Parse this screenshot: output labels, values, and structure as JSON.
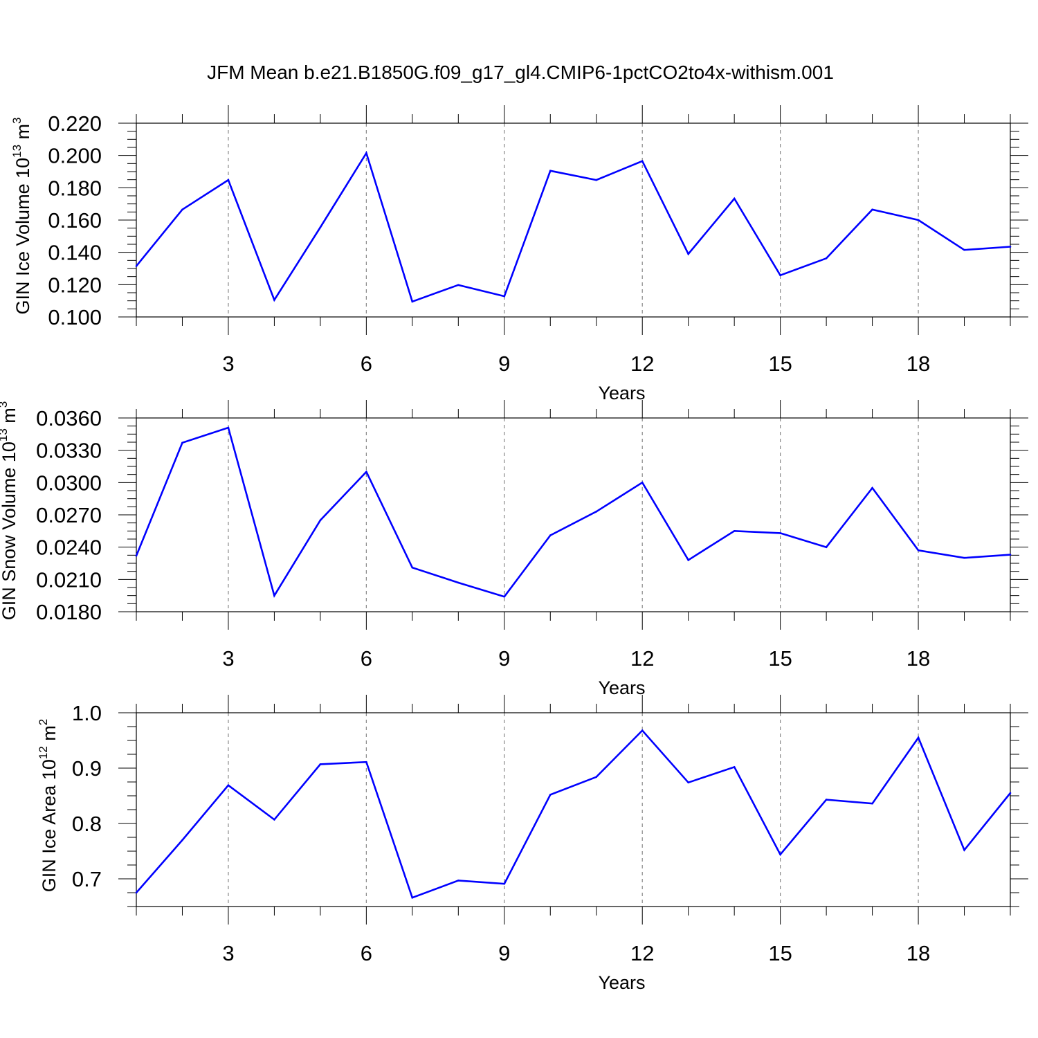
{
  "title": "JFM Mean b.e21.B1850G.f09_g17_gl4.CMIP6-1pctCO2to4x-withism.001",
  "colors": {
    "series": "#0000ff",
    "axis": "#000000",
    "grid": "#888888"
  },
  "chart_data": [
    {
      "type": "line",
      "ylabel": {
        "base": "GIN Ice Volume 10",
        "exp": "13",
        "unit": " m",
        "unit_exp": "3"
      },
      "xlabel": "Years",
      "xlim": [
        1,
        20
      ],
      "ylim": [
        0.1,
        0.22
      ],
      "x_ticks": [
        3,
        6,
        9,
        12,
        15,
        18
      ],
      "y_ticks": [
        "0.100",
        "0.120",
        "0.140",
        "0.160",
        "0.180",
        "0.200",
        "0.220"
      ],
      "grid": "vertical-dashed",
      "x": [
        1,
        2,
        3,
        4,
        5,
        6,
        7,
        8,
        9,
        10,
        11,
        12,
        13,
        14,
        15,
        16,
        17,
        18,
        19,
        20
      ],
      "values": [
        0.1315,
        0.1665,
        0.1848,
        0.1105,
        0.1555,
        0.2015,
        0.1095,
        0.1198,
        0.1128,
        0.1905,
        0.1848,
        0.1965,
        0.139,
        0.1733,
        0.1258,
        0.1363,
        0.1665,
        0.16,
        0.1415,
        0.1435
      ]
    },
    {
      "type": "line",
      "ylabel": {
        "base": "GIN Snow Volume 10",
        "exp": "13",
        "unit": " m",
        "unit_exp": "3"
      },
      "xlabel": "Years",
      "xlim": [
        1,
        20
      ],
      "ylim": [
        0.018,
        0.036
      ],
      "x_ticks": [
        3,
        6,
        9,
        12,
        15,
        18
      ],
      "y_ticks": [
        "0.0180",
        "0.0210",
        "0.0240",
        "0.0270",
        "0.0300",
        "0.0330",
        "0.0360"
      ],
      "grid": "vertical-dashed",
      "x": [
        1,
        2,
        3,
        4,
        5,
        6,
        7,
        8,
        9,
        10,
        11,
        12,
        13,
        14,
        15,
        16,
        17,
        18,
        19,
        20
      ],
      "values": [
        0.0232,
        0.0337,
        0.0351,
        0.0195,
        0.0265,
        0.031,
        0.0221,
        0.0207,
        0.0194,
        0.0251,
        0.0273,
        0.03,
        0.0228,
        0.0255,
        0.0253,
        0.024,
        0.0295,
        0.0237,
        0.023,
        0.0233
      ]
    },
    {
      "type": "line",
      "ylabel": {
        "base": "GIN Ice Area 10",
        "exp": "12",
        "unit": " m",
        "unit_exp": "2"
      },
      "xlabel": "Years",
      "xlim": [
        1,
        20
      ],
      "ylim": [
        0.65,
        1.0
      ],
      "x_ticks": [
        3,
        6,
        9,
        12,
        15,
        18
      ],
      "y_ticks": [
        "0.7",
        "0.8",
        "0.9",
        "1.0"
      ],
      "grid": "vertical-dashed",
      "x": [
        1,
        2,
        3,
        4,
        5,
        6,
        7,
        8,
        9,
        10,
        11,
        12,
        13,
        14,
        15,
        16,
        17,
        18,
        19,
        20
      ],
      "values": [
        0.675,
        0.77,
        0.869,
        0.807,
        0.907,
        0.911,
        0.666,
        0.697,
        0.691,
        0.852,
        0.884,
        0.968,
        0.874,
        0.902,
        0.744,
        0.843,
        0.836,
        0.955,
        0.752,
        0.855
      ]
    }
  ]
}
